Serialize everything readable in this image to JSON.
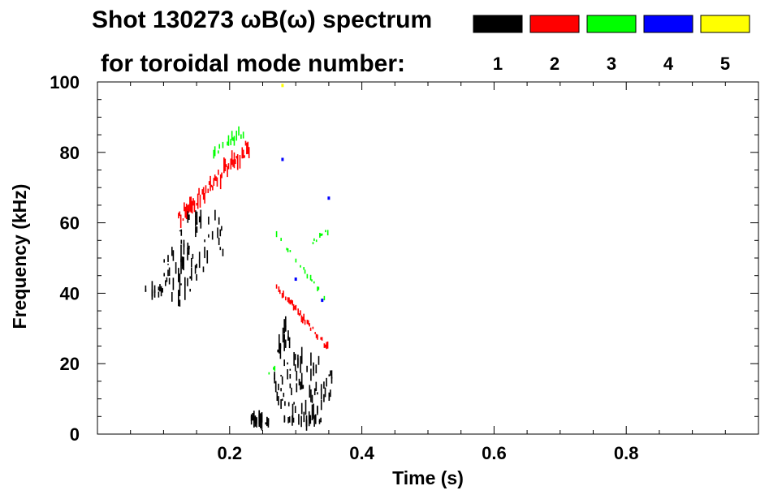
{
  "chart_data": {
    "type": "scatter",
    "title_line1": "Shot 130273 ωB(ω) spectrum",
    "title_line2": "for toroidal mode number:",
    "xlabel": "Time (s)",
    "ylabel": "Frequency (kHz)",
    "xlim": [
      0.0,
      1.0
    ],
    "ylim": [
      0,
      100
    ],
    "x_ticks": [
      0.2,
      0.4,
      0.6,
      0.8
    ],
    "x_tick_labels": [
      "0.2",
      "0.4",
      "0.6",
      "0.8"
    ],
    "y_ticks": [
      0,
      20,
      40,
      60,
      80,
      100
    ],
    "y_tick_labels": [
      "0",
      "20",
      "40",
      "60",
      "80",
      "100"
    ],
    "grid": false,
    "legend": {
      "placement": "top-right",
      "entries": [
        {
          "label": "1",
          "color": "#000000"
        },
        {
          "label": "2",
          "color": "#ff0000"
        },
        {
          "label": "3",
          "color": "#00ff00"
        },
        {
          "label": "4",
          "color": "#0000ff"
        },
        {
          "label": "5",
          "color": "#ffff00"
        }
      ]
    },
    "series": [
      {
        "name": "1",
        "color": "#000000",
        "regions": [
          {
            "t": [
              0.07,
              0.1
            ],
            "f_center": 40.5,
            "f_spread": 1.5,
            "density": 0.45
          },
          {
            "t": [
              0.1,
              0.15
            ],
            "f_center": 46,
            "f_spread": 9,
            "density": 0.6
          },
          {
            "t": [
              0.12,
              0.19
            ],
            "f_center": 55,
            "f_spread": 10,
            "density": 0.35
          },
          {
            "t": [
              0.265,
              0.355
            ],
            "f_center": 14,
            "f_spread": 9,
            "density": 0.6
          },
          {
            "t": [
              0.27,
              0.29
            ],
            "f_center": 26,
            "f_spread": 6,
            "density": 0.35
          },
          {
            "t": [
              0.23,
              0.26
            ],
            "f_center": 4,
            "f_spread": 1.5,
            "density": 0.45
          },
          {
            "t": [
              0.28,
              0.34
            ],
            "f_center": 4,
            "f_spread": 1,
            "density": 0.25
          }
        ]
      },
      {
        "name": "2",
        "color": "#ff0000",
        "tracks": [
          {
            "t": [
              0.12,
              0.23
            ],
            "f_start": 61,
            "f_end": 82,
            "width": 4,
            "density": 0.85
          },
          {
            "t": [
              0.27,
              0.35
            ],
            "f_start": 42,
            "f_end": 24,
            "width": 1.5,
            "density": 0.7
          }
        ]
      },
      {
        "name": "3",
        "color": "#00ff00",
        "tracks": [
          {
            "t": [
              0.175,
              0.22
            ],
            "f_start": 80,
            "f_end": 86,
            "width": 2.5,
            "density": 0.5
          },
          {
            "t": [
              0.27,
              0.345
            ],
            "f_start": 57,
            "f_end": 38,
            "width": 1.2,
            "density": 0.35
          },
          {
            "t": [
              0.25,
              0.27
            ],
            "f_start": 16,
            "f_end": 19,
            "width": 1,
            "density": 0.3
          },
          {
            "t": [
              0.32,
              0.35
            ],
            "f_start": 54,
            "f_end": 58,
            "width": 1,
            "density": 0.3
          }
        ]
      },
      {
        "name": "4",
        "color": "#0000ff",
        "points": [
          [
            0.3,
            44
          ],
          [
            0.35,
            67
          ],
          [
            0.34,
            38
          ],
          [
            0.28,
            78
          ]
        ]
      },
      {
        "name": "5",
        "color": "#ffff00",
        "points": [
          [
            0.28,
            99
          ]
        ]
      }
    ]
  }
}
